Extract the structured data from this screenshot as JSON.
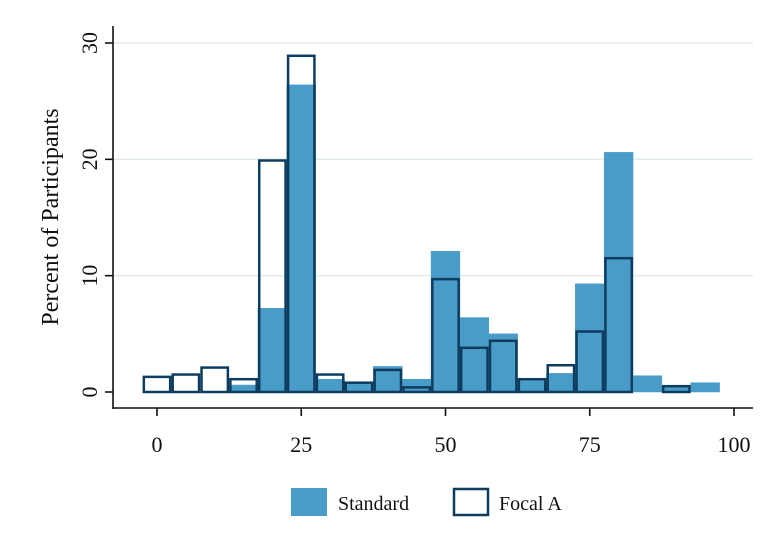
{
  "chart_data": {
    "type": "bar",
    "subtype": "overlaid-histogram",
    "title": "",
    "xlabel": "",
    "ylabel": "Percent of Participants",
    "xlim": [
      -2.5,
      100
    ],
    "ylim": [
      0,
      31
    ],
    "xticks": [
      0,
      25,
      50,
      75,
      100
    ],
    "yticks": [
      0,
      10,
      20,
      30
    ],
    "grid": true,
    "legend_position": "bottom",
    "bin_width": 5,
    "bin_starts": [
      -2.5,
      2.5,
      7.5,
      12.5,
      17.5,
      22.5,
      27.5,
      32.5,
      37.5,
      42.5,
      47.5,
      52.5,
      57.5,
      62.5,
      67.5,
      72.5,
      77.5,
      82.5,
      87.5,
      92.5
    ],
    "series": [
      {
        "name": "Standard",
        "style": "filled",
        "color": "#4a9cc8",
        "values": [
          0,
          0,
          0,
          0.6,
          7.2,
          26.4,
          1.1,
          0.8,
          2.2,
          1.1,
          12.1,
          6.4,
          5.0,
          1.0,
          1.6,
          9.3,
          20.6,
          1.4,
          0.5,
          0.8
        ]
      },
      {
        "name": "Focal A",
        "style": "outline",
        "color": "#0d3c5e",
        "values": [
          1.3,
          1.5,
          2.1,
          1.1,
          19.9,
          28.9,
          1.5,
          0.8,
          1.9,
          0.4,
          9.7,
          3.8,
          4.4,
          1.1,
          2.3,
          5.2,
          11.5,
          0,
          0.5,
          0
        ]
      }
    ],
    "colors": {
      "grid": "#e2ecec",
      "axis": "#111111"
    }
  }
}
